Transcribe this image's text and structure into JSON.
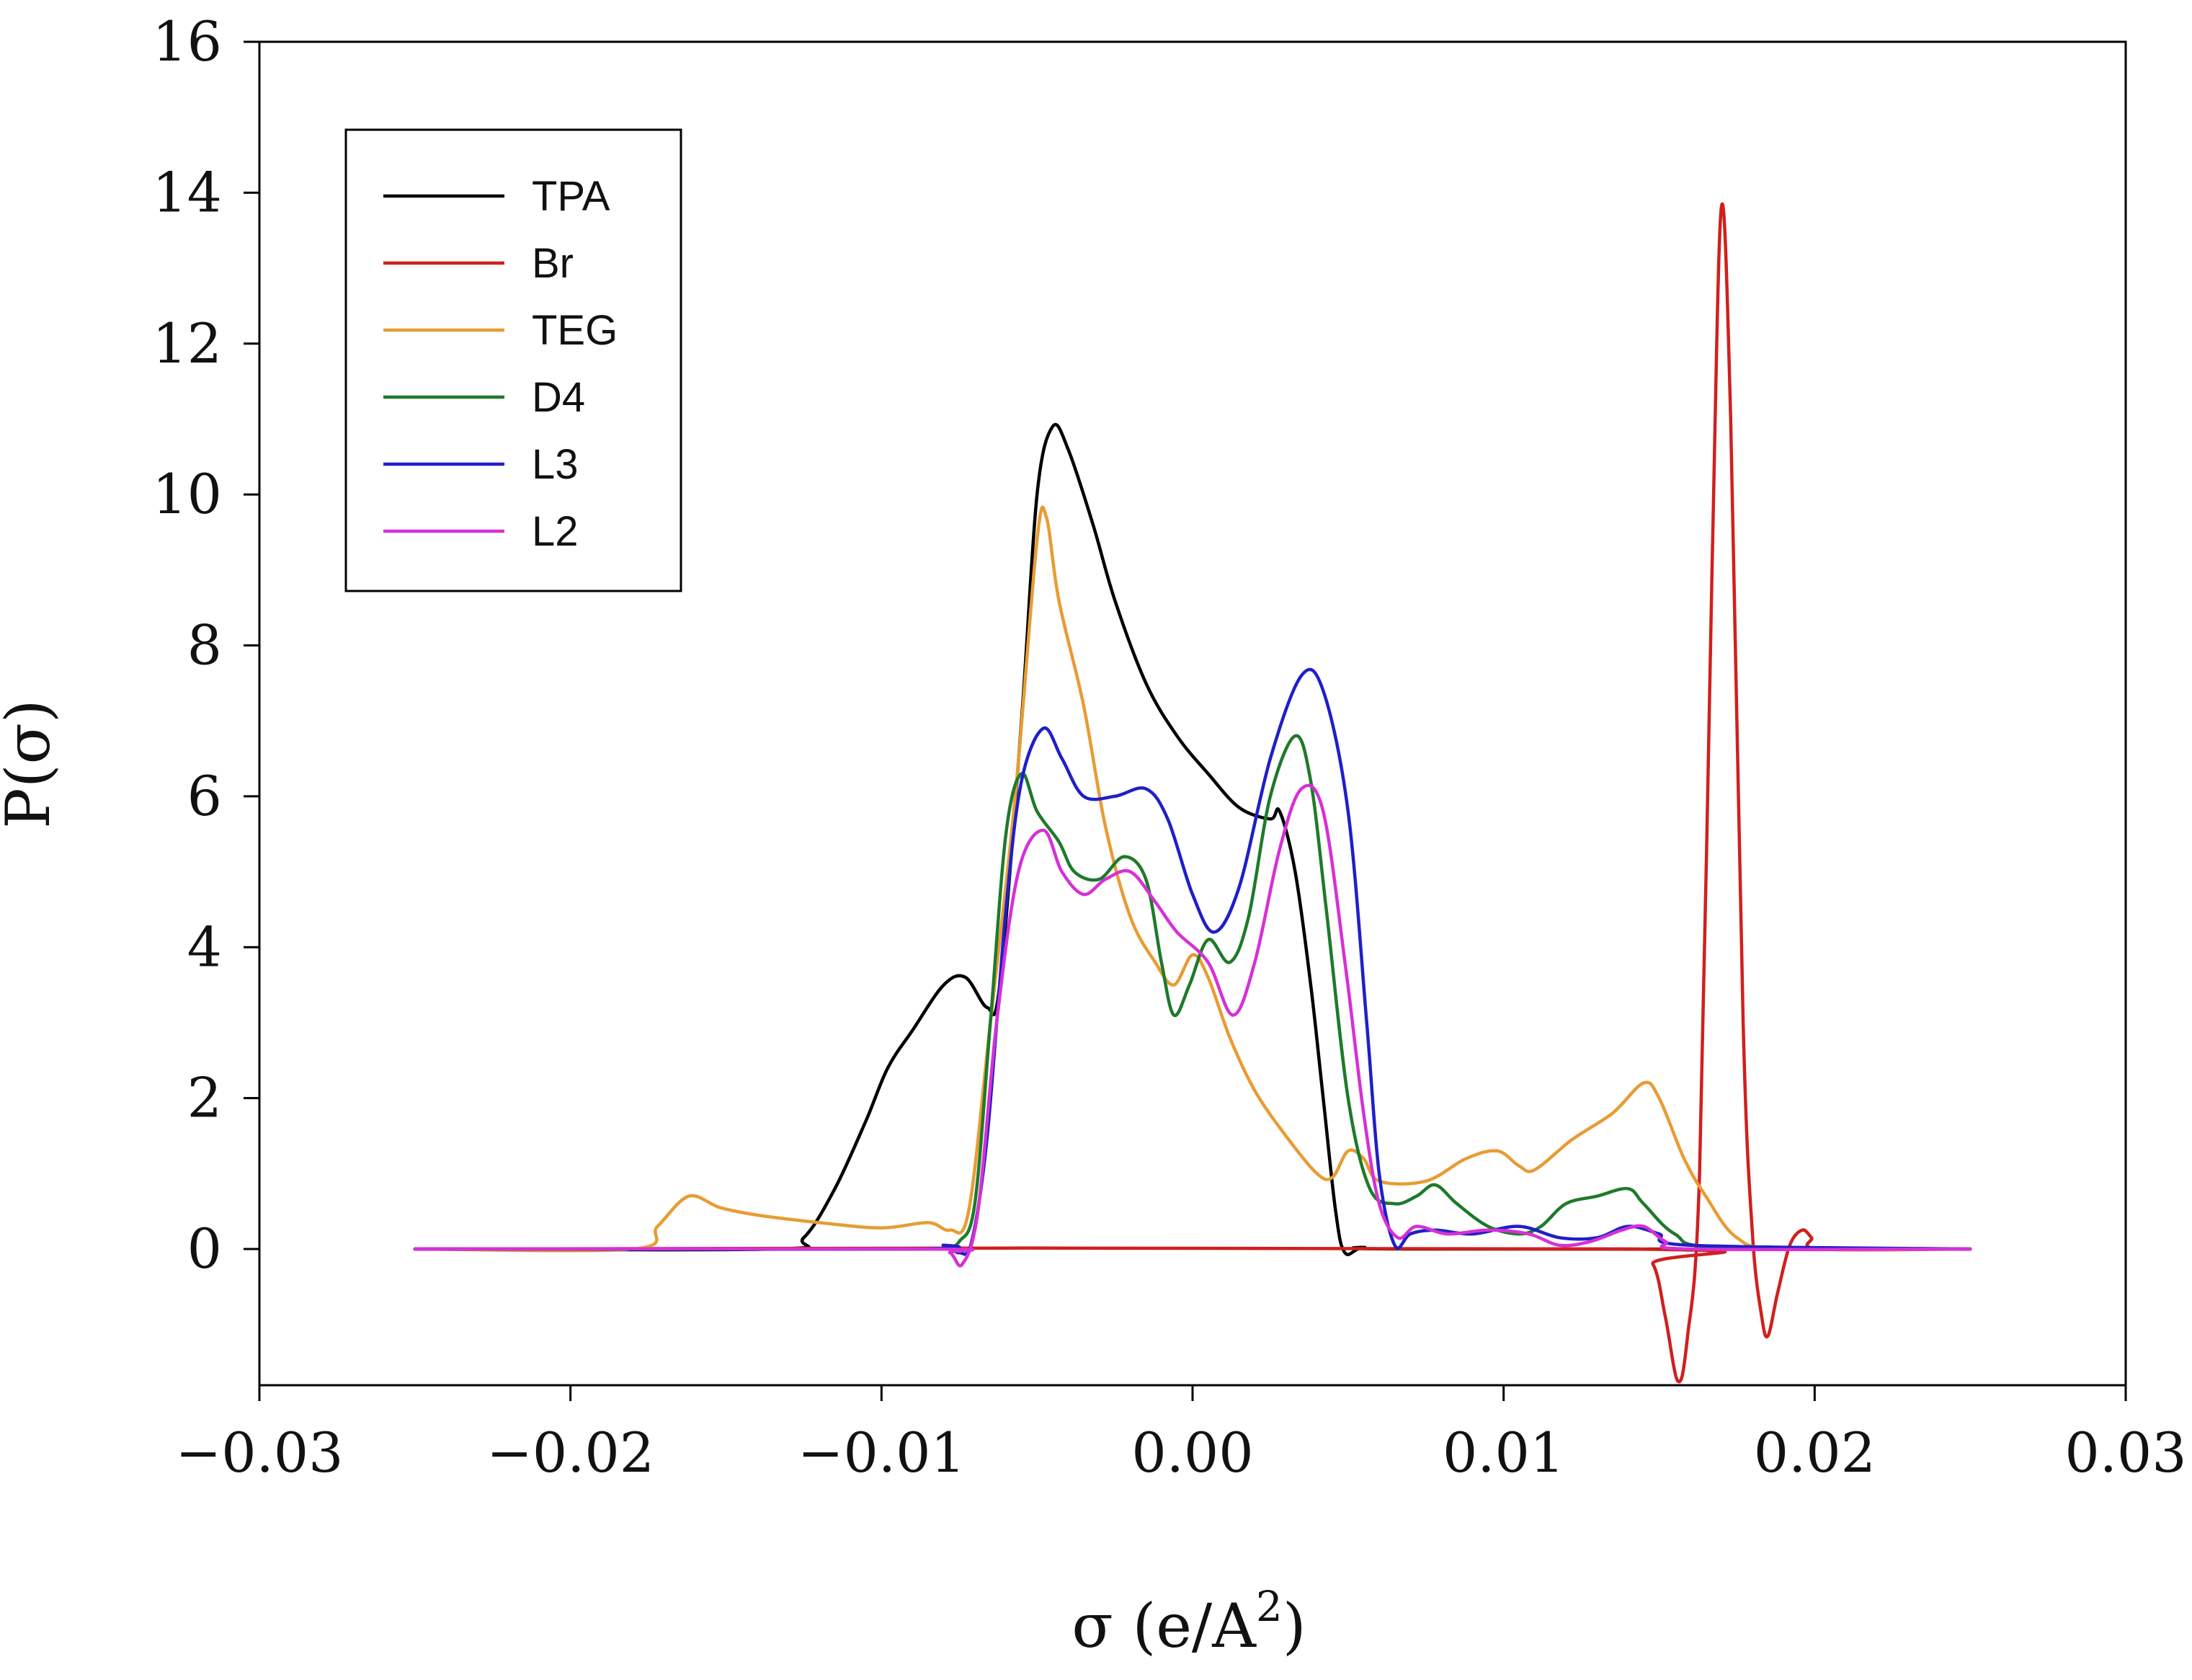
{
  "chart_data": {
    "type": "line",
    "title": "",
    "xlabel": "σ (e/A",
    "xlabel_sup": "2",
    "xlabel_close": ")",
    "ylabel": "P(σ)",
    "xlim": [
      -0.03,
      0.03
    ],
    "ylim": [
      -1.8,
      16
    ],
    "x_ticks": [
      -0.03,
      -0.02,
      -0.01,
      0.0,
      0.01,
      0.02,
      0.03
    ],
    "x_tick_labels": [
      "−0.03",
      "−0.02",
      "−0.01",
      "0.00",
      "0.01",
      "0.02",
      "0.03"
    ],
    "y_ticks": [
      0,
      2,
      4,
      6,
      8,
      10,
      12,
      14,
      16
    ],
    "y_tick_labels": [
      "0",
      "2",
      "4",
      "6",
      "8",
      "10",
      "12",
      "14",
      "16"
    ],
    "legend_position": "top-left",
    "series": [
      {
        "name": "TPA",
        "color": "#000000",
        "points": [
          [
            -0.025,
            0
          ],
          [
            -0.0135,
            0
          ],
          [
            -0.0125,
            0.15
          ],
          [
            -0.0115,
            0.8
          ],
          [
            -0.0105,
            1.7
          ],
          [
            -0.0098,
            2.4
          ],
          [
            -0.009,
            2.9
          ],
          [
            -0.008,
            3.5
          ],
          [
            -0.0073,
            3.6
          ],
          [
            -0.0066,
            3.2
          ],
          [
            -0.0062,
            3.5
          ],
          [
            -0.0055,
            7.0
          ],
          [
            -0.005,
            10.0
          ],
          [
            -0.0045,
            10.9
          ],
          [
            -0.004,
            10.6
          ],
          [
            -0.0032,
            9.6
          ],
          [
            -0.0025,
            8.6
          ],
          [
            -0.0015,
            7.5
          ],
          [
            -0.0005,
            6.8
          ],
          [
            0.0005,
            6.3
          ],
          [
            0.0015,
            5.85
          ],
          [
            0.0025,
            5.7
          ],
          [
            0.0028,
            5.8
          ],
          [
            0.0033,
            5.0
          ],
          [
            0.0038,
            3.5
          ],
          [
            0.0042,
            2.0
          ],
          [
            0.0046,
            0.5
          ],
          [
            0.0049,
            -0.05
          ],
          [
            0.0055,
            0.02
          ],
          [
            0.007,
            0
          ],
          [
            0.025,
            0
          ]
        ]
      },
      {
        "name": "Br",
        "color": "#d0201d",
        "points": [
          [
            -0.025,
            0
          ],
          [
            0.014,
            0
          ],
          [
            0.0148,
            -0.2
          ],
          [
            0.0152,
            -0.9
          ],
          [
            0.0156,
            -1.75
          ],
          [
            0.0159,
            -1.2
          ],
          [
            0.0163,
            1.0
          ],
          [
            0.0167,
            9.0
          ],
          [
            0.017,
            13.8
          ],
          [
            0.0173,
            11.0
          ],
          [
            0.0177,
            3.0
          ],
          [
            0.018,
            0.2
          ],
          [
            0.0183,
            -0.9
          ],
          [
            0.0185,
            -1.15
          ],
          [
            0.0188,
            -0.6
          ],
          [
            0.0192,
            0.05
          ],
          [
            0.0196,
            0.25
          ],
          [
            0.0199,
            0.15
          ],
          [
            0.0202,
            0
          ],
          [
            0.025,
            0
          ]
        ]
      },
      {
        "name": "TEG",
        "color": "#e89c34",
        "points": [
          [
            -0.025,
            0
          ],
          [
            -0.018,
            0
          ],
          [
            -0.0172,
            0.3
          ],
          [
            -0.0162,
            0.7
          ],
          [
            -0.0152,
            0.55
          ],
          [
            -0.014,
            0.45
          ],
          [
            -0.012,
            0.35
          ],
          [
            -0.01,
            0.28
          ],
          [
            -0.0085,
            0.35
          ],
          [
            -0.0078,
            0.25
          ],
          [
            -0.0072,
            0.5
          ],
          [
            -0.0065,
            3.0
          ],
          [
            -0.0057,
            6.0
          ],
          [
            -0.005,
            9.4
          ],
          [
            -0.0047,
            9.7
          ],
          [
            -0.0043,
            8.6
          ],
          [
            -0.0035,
            7.2
          ],
          [
            -0.0028,
            5.6
          ],
          [
            -0.002,
            4.4
          ],
          [
            -0.0012,
            3.8
          ],
          [
            -0.0006,
            3.5
          ],
          [
            0.0,
            3.9
          ],
          [
            0.0005,
            3.6
          ],
          [
            0.0012,
            2.8
          ],
          [
            0.002,
            2.1
          ],
          [
            0.003,
            1.5
          ],
          [
            0.004,
            1.0
          ],
          [
            0.0045,
            0.95
          ],
          [
            0.005,
            1.3
          ],
          [
            0.0055,
            1.2
          ],
          [
            0.006,
            0.9
          ],
          [
            0.0075,
            0.9
          ],
          [
            0.0088,
            1.2
          ],
          [
            0.0098,
            1.3
          ],
          [
            0.0105,
            1.1
          ],
          [
            0.011,
            1.05
          ],
          [
            0.0122,
            1.45
          ],
          [
            0.0135,
            1.8
          ],
          [
            0.0145,
            2.2
          ],
          [
            0.015,
            2.0
          ],
          [
            0.0158,
            1.2
          ],
          [
            0.0165,
            0.7
          ],
          [
            0.0175,
            0.15
          ],
          [
            0.019,
            0
          ],
          [
            0.025,
            0
          ]
        ]
      },
      {
        "name": "D4",
        "color": "#1e7a2a",
        "points": [
          [
            -0.025,
            0
          ],
          [
            -0.009,
            0
          ],
          [
            -0.008,
            0.02
          ],
          [
            -0.0075,
            0.1
          ],
          [
            -0.007,
            0.6
          ],
          [
            -0.0065,
            3.0
          ],
          [
            -0.006,
            5.5
          ],
          [
            -0.0055,
            6.3
          ],
          [
            -0.005,
            5.8
          ],
          [
            -0.0043,
            5.4
          ],
          [
            -0.0038,
            5.0
          ],
          [
            -0.003,
            4.9
          ],
          [
            -0.0022,
            5.2
          ],
          [
            -0.0015,
            4.9
          ],
          [
            -0.001,
            3.8
          ],
          [
            -0.0006,
            3.1
          ],
          [
            -0.0001,
            3.5
          ],
          [
            0.0005,
            4.1
          ],
          [
            0.0012,
            3.8
          ],
          [
            0.0018,
            4.4
          ],
          [
            0.0025,
            6.0
          ],
          [
            0.0033,
            6.8
          ],
          [
            0.0038,
            6.2
          ],
          [
            0.0043,
            4.5
          ],
          [
            0.005,
            2.0
          ],
          [
            0.0057,
            0.8
          ],
          [
            0.0065,
            0.6
          ],
          [
            0.0072,
            0.7
          ],
          [
            0.0078,
            0.85
          ],
          [
            0.0085,
            0.6
          ],
          [
            0.0095,
            0.3
          ],
          [
            0.0105,
            0.2
          ],
          [
            0.0112,
            0.3
          ],
          [
            0.012,
            0.6
          ],
          [
            0.013,
            0.7
          ],
          [
            0.014,
            0.8
          ],
          [
            0.0145,
            0.6
          ],
          [
            0.0155,
            0.2
          ],
          [
            0.017,
            0.02
          ],
          [
            0.025,
            0
          ]
        ]
      },
      {
        "name": "L3",
        "color": "#1f1fc8",
        "points": [
          [
            -0.025,
            0
          ],
          [
            -0.009,
            0
          ],
          [
            -0.008,
            0.05
          ],
          [
            -0.0075,
            -0.05
          ],
          [
            -0.0071,
            0.1
          ],
          [
            -0.0066,
            1.5
          ],
          [
            -0.006,
            4.5
          ],
          [
            -0.0055,
            6.2
          ],
          [
            -0.0048,
            6.9
          ],
          [
            -0.0042,
            6.5
          ],
          [
            -0.0035,
            6.0
          ],
          [
            -0.0025,
            6.0
          ],
          [
            -0.0015,
            6.1
          ],
          [
            -0.0008,
            5.7
          ],
          [
            0.0,
            4.7
          ],
          [
            0.0007,
            4.2
          ],
          [
            0.0015,
            4.8
          ],
          [
            0.0025,
            6.5
          ],
          [
            0.0035,
            7.6
          ],
          [
            0.0042,
            7.4
          ],
          [
            0.005,
            5.8
          ],
          [
            0.0056,
            3.0
          ],
          [
            0.006,
            1.0
          ],
          [
            0.0065,
            0.05
          ],
          [
            0.007,
            0.2
          ],
          [
            0.0078,
            0.25
          ],
          [
            0.009,
            0.2
          ],
          [
            0.0105,
            0.3
          ],
          [
            0.0118,
            0.15
          ],
          [
            0.013,
            0.15
          ],
          [
            0.014,
            0.3
          ],
          [
            0.015,
            0.2
          ],
          [
            0.016,
            0.05
          ],
          [
            0.025,
            0
          ]
        ]
      },
      {
        "name": "L2",
        "color": "#d630d6",
        "points": [
          [
            -0.025,
            0
          ],
          [
            -0.0085,
            0
          ],
          [
            -0.0078,
            -0.05
          ],
          [
            -0.0074,
            -0.2
          ],
          [
            -0.0069,
            0.5
          ],
          [
            -0.0063,
            3.0
          ],
          [
            -0.0056,
            5.0
          ],
          [
            -0.0048,
            5.55
          ],
          [
            -0.0042,
            5.0
          ],
          [
            -0.0035,
            4.7
          ],
          [
            -0.0028,
            4.9
          ],
          [
            -0.002,
            5.0
          ],
          [
            -0.0012,
            4.6
          ],
          [
            -0.0005,
            4.2
          ],
          [
            0.0005,
            3.8
          ],
          [
            0.0013,
            3.1
          ],
          [
            0.002,
            3.8
          ],
          [
            0.0028,
            5.3
          ],
          [
            0.0035,
            6.1
          ],
          [
            0.0042,
            5.8
          ],
          [
            0.0049,
            3.8
          ],
          [
            0.0055,
            1.8
          ],
          [
            0.006,
            0.6
          ],
          [
            0.0066,
            0.15
          ],
          [
            0.0072,
            0.3
          ],
          [
            0.0082,
            0.2
          ],
          [
            0.0095,
            0.25
          ],
          [
            0.0108,
            0.2
          ],
          [
            0.0118,
            0.05
          ],
          [
            0.0128,
            0.1
          ],
          [
            0.0138,
            0.25
          ],
          [
            0.0145,
            0.3
          ],
          [
            0.0152,
            0.1
          ],
          [
            0.016,
            0
          ],
          [
            0.025,
            0
          ]
        ]
      }
    ]
  }
}
